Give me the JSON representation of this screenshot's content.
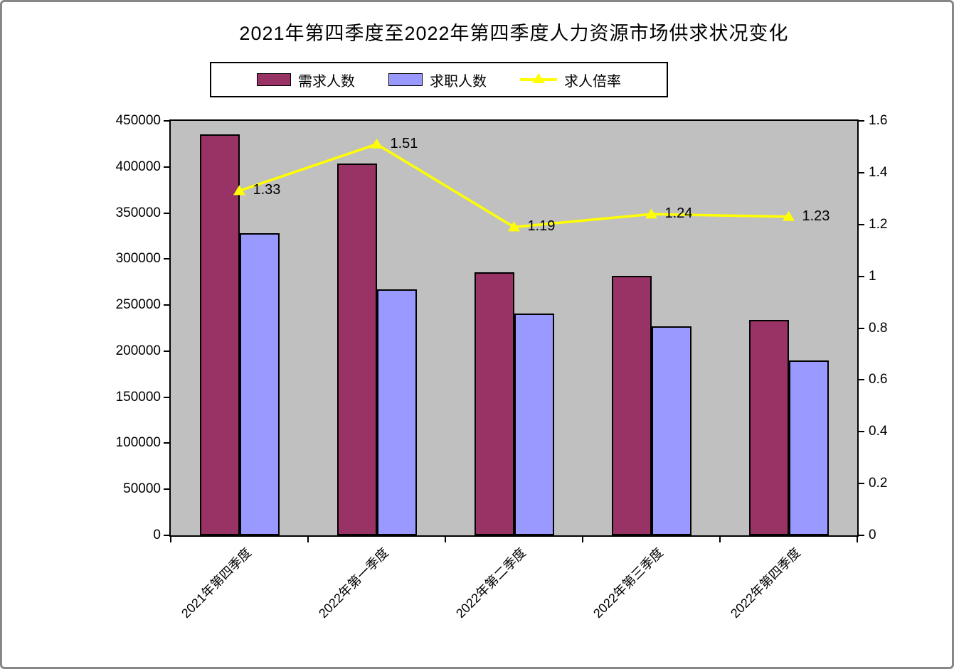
{
  "chart_data": {
    "type": "bar+line combo",
    "title": "2021年第四季度至2022年第四季度人力资源市场供求状况变化",
    "categories": [
      "2021年第四季度",
      "2022年第一季度",
      "2022年第二季度",
      "2022年第三季度",
      "2022年第四季度"
    ],
    "series": [
      {
        "name": "需求人数",
        "type": "bar",
        "axis": "left",
        "color": "#993366",
        "values": [
          435000,
          404000,
          286000,
          282000,
          234000
        ]
      },
      {
        "name": "求职人数",
        "type": "bar",
        "axis": "left",
        "color": "#9999FF",
        "values": [
          328000,
          267000,
          241000,
          227000,
          190000
        ]
      },
      {
        "name": "求人倍率",
        "type": "line",
        "axis": "right",
        "color": "#FFFF00",
        "values": [
          1.33,
          1.51,
          1.19,
          1.24,
          1.23
        ],
        "labels": [
          "1.33",
          "1.51",
          "1.19",
          "1.24",
          "1.23"
        ]
      }
    ],
    "left_axis": {
      "min": 0,
      "max": 450000,
      "step": 50000,
      "ticks": [
        "0",
        "50000",
        "100000",
        "150000",
        "200000",
        "250000",
        "300000",
        "350000",
        "400000",
        "450000"
      ]
    },
    "right_axis": {
      "min": 0,
      "max": 1.6,
      "step": 0.2,
      "ticks": [
        "0",
        "0.2",
        "0.4",
        "0.6",
        "0.8",
        "1",
        "1.2",
        "1.4",
        "1.6"
      ]
    },
    "legend": {
      "position": "top",
      "items": [
        {
          "label": "需求人数",
          "marker": "bar-swatch",
          "color": "#993366"
        },
        {
          "label": "求职人数",
          "marker": "bar-swatch",
          "color": "#9999FF"
        },
        {
          "label": "求人倍率",
          "marker": "line-triangle",
          "color": "#FFFF00"
        }
      ]
    },
    "grid": "off",
    "plot_bg": "#C0C0C0",
    "bar_border_color": "#000000",
    "xlabel_rotation_deg": 45
  }
}
